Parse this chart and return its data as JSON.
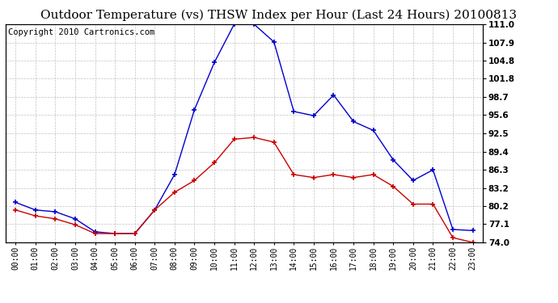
{
  "title": "Outdoor Temperature (vs) THSW Index per Hour (Last 24 Hours) 20100813",
  "copyright": "Copyright 2010 Cartronics.com",
  "hours": [
    "00:00",
    "01:00",
    "02:00",
    "03:00",
    "04:00",
    "05:00",
    "06:00",
    "07:00",
    "08:00",
    "09:00",
    "10:00",
    "11:00",
    "12:00",
    "13:00",
    "14:00",
    "15:00",
    "16:00",
    "17:00",
    "18:00",
    "19:00",
    "20:00",
    "21:00",
    "22:00",
    "23:00"
  ],
  "thsw": [
    80.8,
    79.5,
    79.2,
    78.0,
    75.8,
    75.5,
    75.5,
    79.5,
    85.5,
    96.5,
    104.5,
    111.0,
    111.0,
    108.0,
    96.2,
    95.5,
    99.0,
    94.5,
    93.0,
    88.0,
    84.5,
    86.3,
    76.2,
    76.0
  ],
  "outdoor_temp": [
    79.5,
    78.5,
    78.0,
    77.0,
    75.5,
    75.5,
    75.5,
    79.5,
    82.5,
    84.5,
    87.5,
    91.5,
    91.8,
    91.0,
    85.5,
    85.0,
    85.5,
    85.0,
    85.5,
    83.5,
    80.5,
    80.5,
    74.8,
    74.0
  ],
  "thsw_color": "#0000cc",
  "temp_color": "#cc0000",
  "ylim": [
    74.0,
    111.0
  ],
  "yticks": [
    74.0,
    77.1,
    80.2,
    83.2,
    86.3,
    89.4,
    92.5,
    95.6,
    98.7,
    101.8,
    104.8,
    107.9,
    111.0
  ],
  "ytick_labels": [
    "74.0",
    "77.1",
    "80.2",
    "83.2",
    "86.3",
    "89.4",
    "92.5",
    "95.6",
    "98.7",
    "101.8",
    "104.8",
    "107.9",
    "111.0"
  ],
  "background_color": "#ffffff",
  "grid_color": "#bbbbbb",
  "title_fontsize": 11,
  "copyright_fontsize": 7.5
}
